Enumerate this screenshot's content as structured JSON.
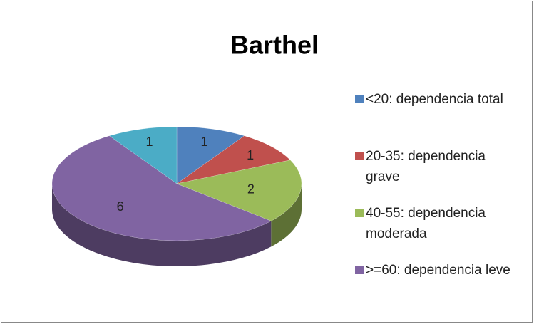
{
  "chart_data": {
    "type": "pie",
    "title": "Barthel",
    "categories": [
      "<20: dependencia total",
      "20-35: dependencia grave",
      "40-55: dependencia moderada",
      ">=60: dependencia leve",
      null
    ],
    "values": [
      1,
      1,
      2,
      6,
      1
    ],
    "colors": [
      "#4f81bd",
      "#c0504d",
      "#9bbb59",
      "#8064a2",
      "#4bacc6"
    ],
    "legend": "right"
  }
}
